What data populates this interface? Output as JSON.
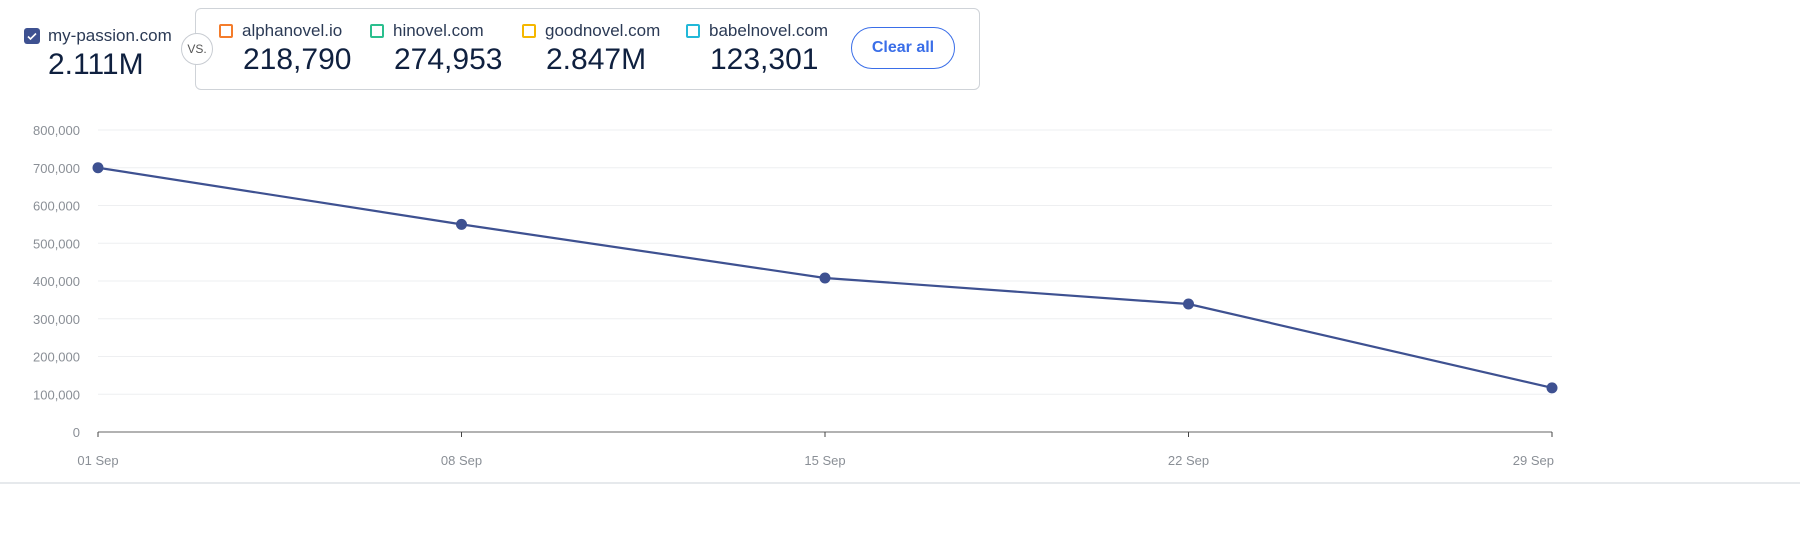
{
  "main_site": {
    "name": "my-passion.com",
    "value": "2.111M",
    "color": "#3e5191",
    "checked": true
  },
  "vs_label": "VS.",
  "competitors": [
    {
      "name": "alphanovel.io",
      "value": "218,790",
      "color": "#f47c2b"
    },
    {
      "name": "hinovel.com",
      "value": "274,953",
      "color": "#2bbf8e"
    },
    {
      "name": "goodnovel.com",
      "value": "2.847M",
      "color": "#f5b700"
    },
    {
      "name": "babelnovel.com",
      "value": "123,301",
      "color": "#22b8d8"
    }
  ],
  "clear_all_label": "Clear all",
  "chart_data": {
    "type": "line",
    "x": [
      "01 Sep",
      "08 Sep",
      "15 Sep",
      "22 Sep",
      "29 Sep"
    ],
    "series": [
      {
        "values": [
          700000,
          550000,
          408000,
          339000,
          117000
        ],
        "color": "#3e5191"
      }
    ],
    "ylim": [
      0,
      800000
    ],
    "yticks": [
      "0",
      "100,000",
      "200,000",
      "300,000",
      "400,000",
      "500,000",
      "600,000",
      "700,000",
      "800,000"
    ],
    "grid": true
  }
}
